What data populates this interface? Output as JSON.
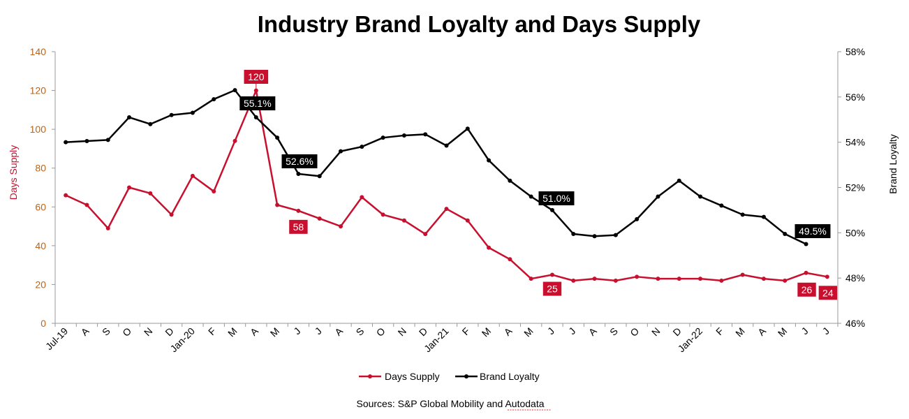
{
  "colors": {
    "days_supply": "#c8102e",
    "brand_loyalty": "#000000",
    "left_axis_ticks": "#b5651d"
  },
  "chart_data": {
    "type": "line",
    "title": "Industry Brand Loyalty and Days Supply",
    "ylabel_left": "Days Supply",
    "ylabel_right": "Brand Loyalty",
    "ylim_left": [
      0,
      140
    ],
    "ylim_right": [
      46,
      58
    ],
    "yticks_left": [
      "0",
      "20",
      "40",
      "60",
      "80",
      "100",
      "120",
      "140"
    ],
    "yticks_right": [
      "46%",
      "48%",
      "50%",
      "52%",
      "54%",
      "56%",
      "58%"
    ],
    "categories": [
      "Jul-19",
      "A",
      "S",
      "O",
      "N",
      "D",
      "Jan-20",
      "F",
      "M",
      "A",
      "M",
      "J",
      "J",
      "A",
      "S",
      "O",
      "N",
      "D",
      "Jan-21",
      "F",
      "M",
      "A",
      "M",
      "J",
      "J",
      "A",
      "S",
      "O",
      "N",
      "D",
      "Jan-22",
      "F",
      "M",
      "A",
      "M",
      "J",
      "J"
    ],
    "series": [
      {
        "name": "Days Supply",
        "axis": "left",
        "values": [
          66,
          61,
          49,
          70,
          67,
          56,
          76,
          68,
          94,
          120,
          61,
          58,
          54,
          50,
          65,
          56,
          53,
          46,
          59,
          53,
          39,
          33,
          23,
          25,
          22,
          23,
          22,
          24,
          23,
          23,
          23,
          22,
          25,
          23,
          22,
          26,
          24
        ]
      },
      {
        "name": "Brand Loyalty",
        "axis": "right",
        "values": [
          54.0,
          54.05,
          54.1,
          55.1,
          54.8,
          55.2,
          55.3,
          55.9,
          56.3,
          55.1,
          54.2,
          52.6,
          52.5,
          53.6,
          53.8,
          54.2,
          54.3,
          54.35,
          53.85,
          54.6,
          53.2,
          52.3,
          51.6,
          51.0,
          49.95,
          49.85,
          49.9,
          50.6,
          51.6,
          52.3,
          51.6,
          51.2,
          50.8,
          50.7,
          49.95,
          49.5,
          null
        ]
      }
    ],
    "annotations": [
      {
        "series": "Days Supply",
        "index": 9,
        "text": "120"
      },
      {
        "series": "Days Supply",
        "index": 11,
        "text": "58"
      },
      {
        "series": "Days Supply",
        "index": 23,
        "text": "25"
      },
      {
        "series": "Days Supply",
        "index": 35,
        "text": "26"
      },
      {
        "series": "Days Supply",
        "index": 36,
        "text": "24"
      },
      {
        "series": "Brand Loyalty",
        "index": 9,
        "text": "55.1%"
      },
      {
        "series": "Brand Loyalty",
        "index": 11,
        "text": "52.6%"
      },
      {
        "series": "Brand Loyalty",
        "index": 23,
        "text": "51.0%"
      },
      {
        "series": "Brand Loyalty",
        "index": 35,
        "text": "49.5%"
      }
    ],
    "legend": [
      "Days Supply",
      "Brand Loyalty"
    ],
    "legend_position": "bottom",
    "grid": false
  },
  "source": "Sources: S&P Global Mobility and Autodata"
}
